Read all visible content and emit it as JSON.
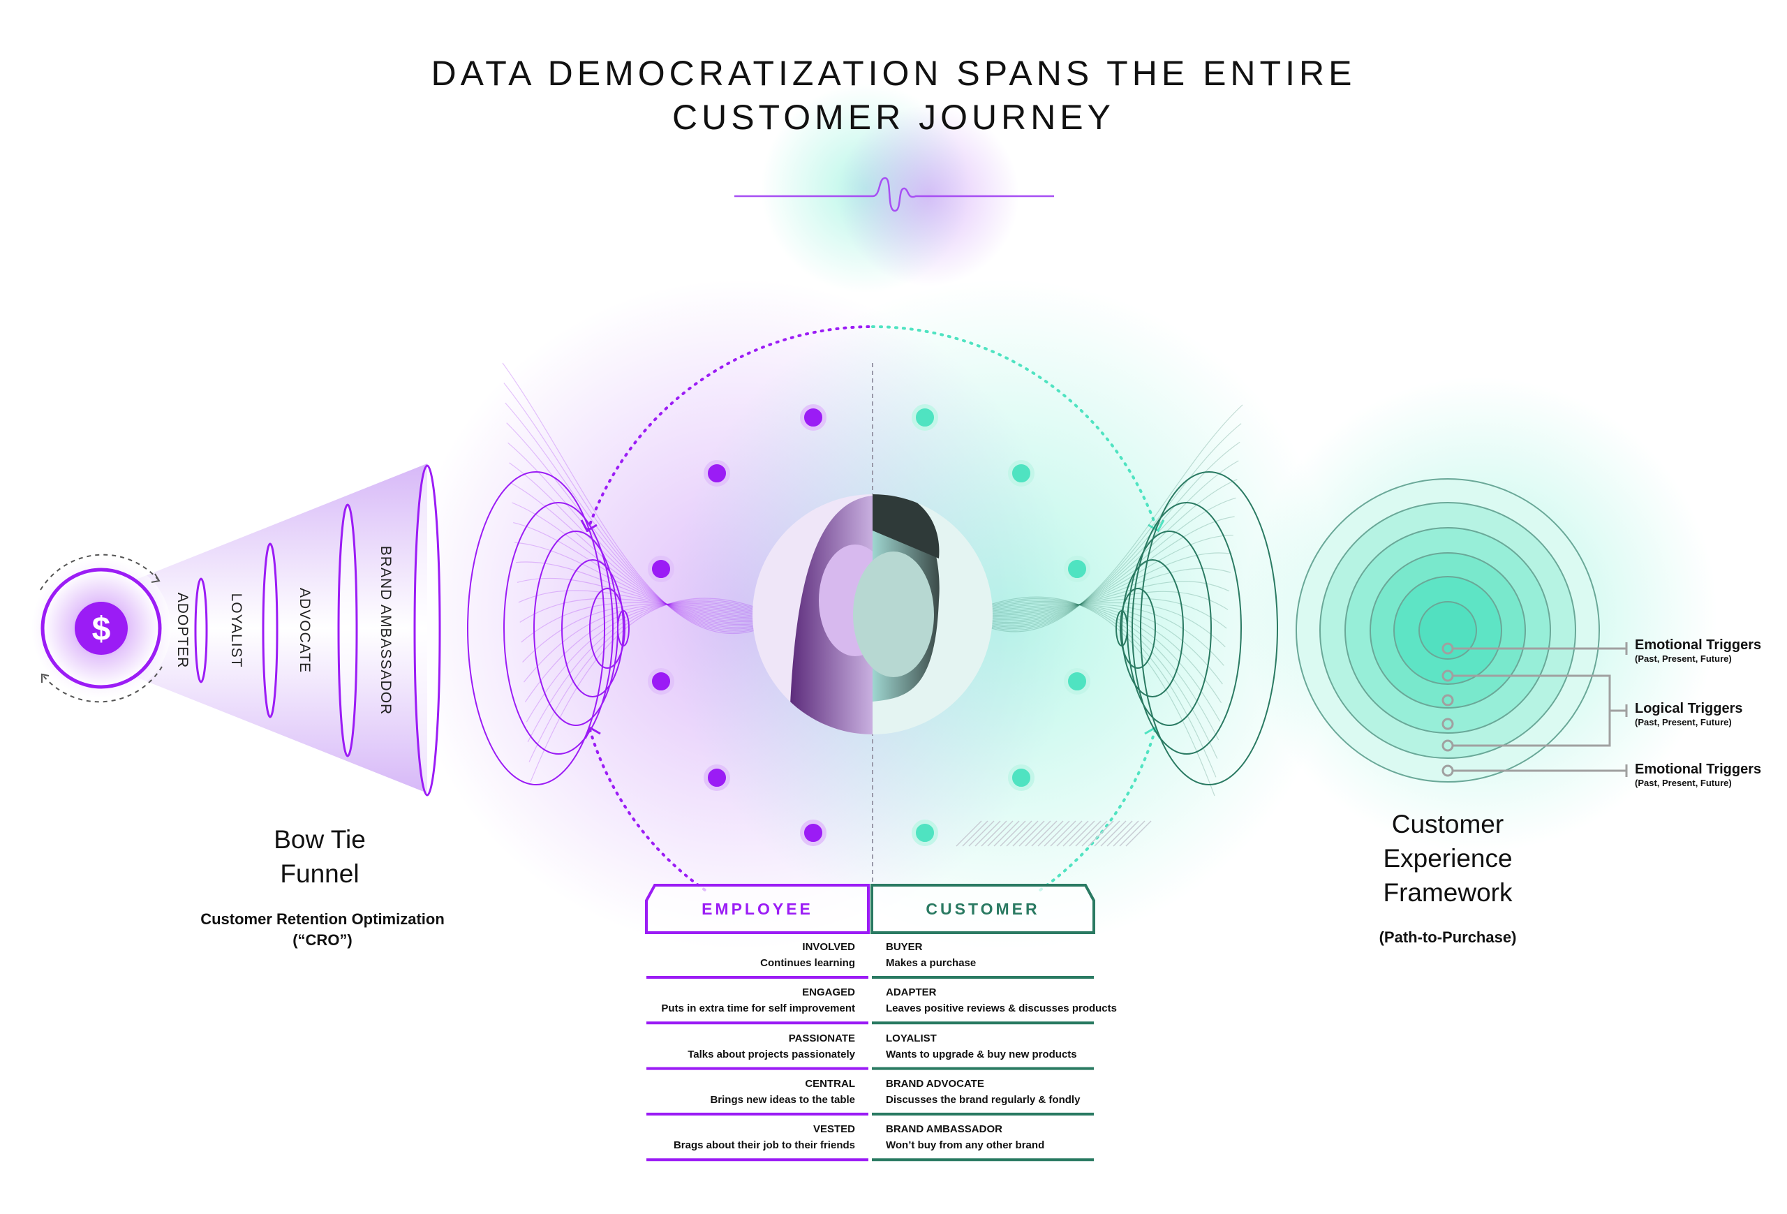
{
  "title": {
    "line1": "DATA DEMOCRATIZATION SPANS THE ENTIRE",
    "line2": "CUSTOMER JOURNEY"
  },
  "colors": {
    "purple": "#9b1cf5",
    "teal": "#4fe3c1",
    "dark_teal": "#2a7a62",
    "gray": "#9a9a9a"
  },
  "bow_tie": {
    "icon": "dollar-icon",
    "stages": [
      "ADOPTER",
      "LOYALIST",
      "ADVOCATE",
      "BRAND AMBASSADOR"
    ],
    "title_line1": "Bow Tie",
    "title_line2": "Funnel",
    "subtitle_line1": "Customer Retention Optimization",
    "subtitle_line2": "(“CRO”)"
  },
  "framework": {
    "title_line1": "Customer",
    "title_line2": "Experience",
    "title_line3": "Framework",
    "subtitle": "(Path-to-Purchase)",
    "triggers": [
      {
        "label": "Emotional Triggers",
        "sub": "(Past, Present, Future)"
      },
      {
        "label": "Logical Triggers",
        "sub": "(Past, Present, Future)"
      },
      {
        "label": "Emotional Triggers",
        "sub": "(Past, Present, Future)"
      }
    ]
  },
  "table": {
    "employee_header": "EMPLOYEE",
    "customer_header": "CUSTOMER",
    "employee_rows": [
      {
        "title": "INVOLVED",
        "desc": "Continues learning"
      },
      {
        "title": "ENGAGED",
        "desc": "Puts in extra time for self improvement"
      },
      {
        "title": "PASSIONATE",
        "desc": "Talks about projects passionately"
      },
      {
        "title": "CENTRAL",
        "desc": "Brings new ideas to the table"
      },
      {
        "title": "VESTED",
        "desc": "Brags about their job to their friends"
      }
    ],
    "customer_rows": [
      {
        "title": "BUYER",
        "desc": "Makes a purchase"
      },
      {
        "title": "ADAPTER",
        "desc": "Leaves positive reviews & discusses products"
      },
      {
        "title": "LOYALIST",
        "desc": "Wants to upgrade & buy new products"
      },
      {
        "title": "BRAND ADVOCATE",
        "desc": "Discusses the brand regularly & fondly"
      },
      {
        "title": "BRAND AMBASSADOR",
        "desc": "Won’t buy from any other brand"
      }
    ]
  }
}
